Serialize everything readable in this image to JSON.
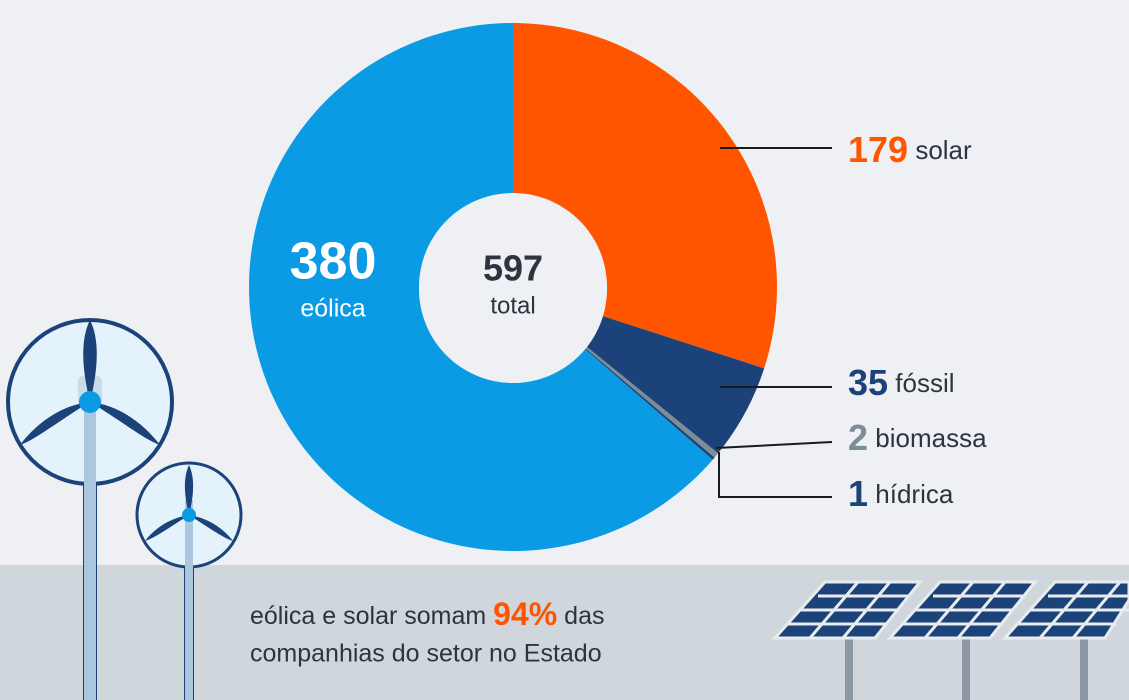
{
  "chart_data": {
    "type": "donut",
    "categories": [
      "solar",
      "fóssil",
      "biomassa",
      "hídrica",
      "eólica"
    ],
    "values": [
      179,
      35,
      2,
      1,
      380
    ],
    "colors": [
      "#ff5500",
      "#1b4379",
      "#7d8c99",
      "#1b4379",
      "#0b9be4"
    ],
    "total_value": 597,
    "total_label": "total"
  },
  "caption": {
    "before": "eólica e solar somam",
    "highlight": "94%",
    "after": "das",
    "line2": "companhias do setor no Estado"
  }
}
